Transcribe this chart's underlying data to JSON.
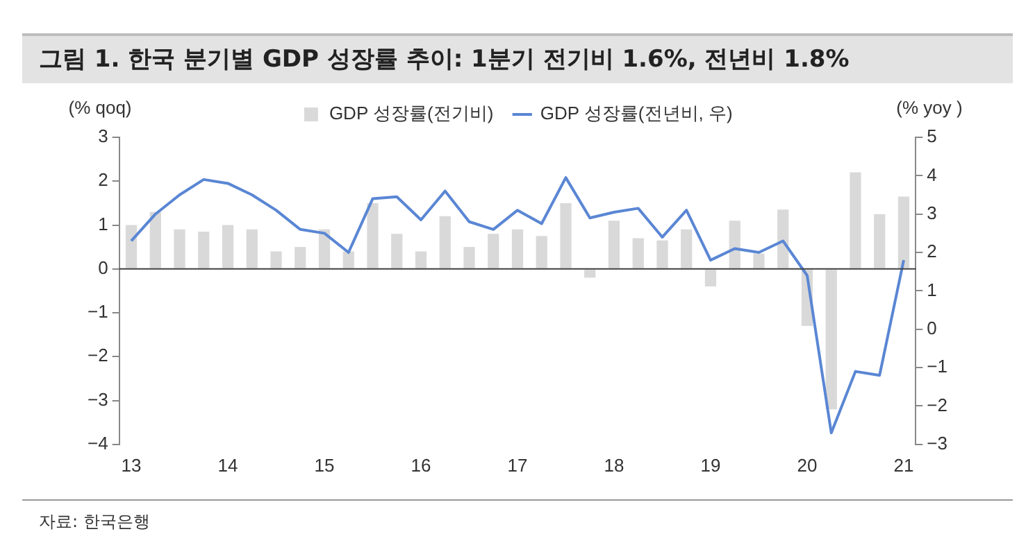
{
  "chart_data": {
    "type": "bar",
    "title": "그림 1. 한국 분기별 GDP 성장률 추이: 1분기 전기비 1.6%, 전년비 1.8%",
    "ylabel": "(% qoq)",
    "y2label": "(% yoy )",
    "annotations": [
      "자료: 한국은행"
    ],
    "categories": [
      "13",
      null,
      null,
      null,
      "14",
      null,
      null,
      null,
      "15",
      null,
      null,
      null,
      "16",
      null,
      null,
      null,
      "17",
      null,
      null,
      null,
      "18",
      null,
      null,
      null,
      "19",
      null,
      null,
      null,
      "20",
      null,
      null,
      null,
      "21"
    ],
    "series": [
      {
        "name": "GDP 성장률(전기비)",
        "color": "#d9d9d9",
        "values": [
          1.0,
          1.3,
          0.9,
          0.85,
          1.0,
          0.9,
          0.4,
          0.5,
          0.9,
          0.4,
          1.5,
          0.8,
          0.4,
          1.2,
          0.5,
          0.8,
          0.9,
          0.75,
          1.5,
          -0.2,
          1.1,
          0.7,
          0.65,
          0.9,
          -0.4,
          1.1,
          0.35,
          1.35,
          -1.3,
          -3.2,
          2.2,
          1.25,
          1.65
        ]
      },
      {
        "name": "GDP 성장률(전년비, 우)",
        "type": "line",
        "axis": "y2",
        "color": "#5a86d4",
        "values": [
          2.3,
          3.0,
          3.5,
          3.9,
          3.8,
          3.5,
          3.1,
          2.6,
          2.5,
          2.0,
          3.4,
          3.45,
          2.85,
          3.6,
          2.8,
          2.6,
          3.1,
          2.75,
          3.95,
          2.9,
          3.05,
          3.15,
          2.4,
          3.1,
          1.8,
          2.1,
          2.0,
          2.3,
          1.4,
          -2.7,
          -1.1,
          -1.2,
          1.8
        ]
      }
    ],
    "ylim": [
      -4,
      3
    ],
    "yticks": [
      -4,
      -3,
      -2,
      -1,
      0,
      1,
      2,
      3
    ],
    "y2lim": [
      -3,
      5
    ],
    "y2ticks": [
      -3,
      -2,
      -1,
      0,
      1,
      2,
      3,
      4,
      5
    ],
    "ref_lines": [
      {
        "axis": "y",
        "value": 0,
        "color": "#404040"
      }
    ],
    "legend": "top",
    "grid": false,
    "marker": "none",
    "line_style": "solid"
  }
}
